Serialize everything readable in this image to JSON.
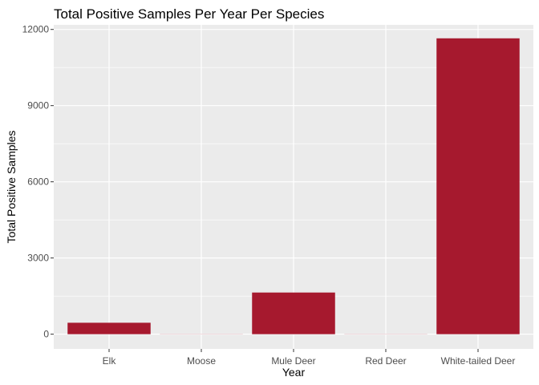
{
  "chart_data": {
    "type": "bar",
    "title": "Total Positive Samples Per Year Per Species",
    "xlabel": "Year",
    "ylabel": "Total Positive Samples",
    "categories": [
      "Elk",
      "Moose",
      "Mule Deer",
      "Red Deer",
      "White-tailed Deer"
    ],
    "values": [
      450,
      5,
      1640,
      5,
      11650
    ],
    "yticks": [
      0,
      3000,
      6000,
      9000,
      12000
    ],
    "ylim": [
      -580,
      12180
    ],
    "grid": true,
    "legend": "none",
    "colors": {
      "bar": "#A6192E",
      "panel_background": "#EBEBEB",
      "gridline": "#FFFFFF"
    }
  }
}
